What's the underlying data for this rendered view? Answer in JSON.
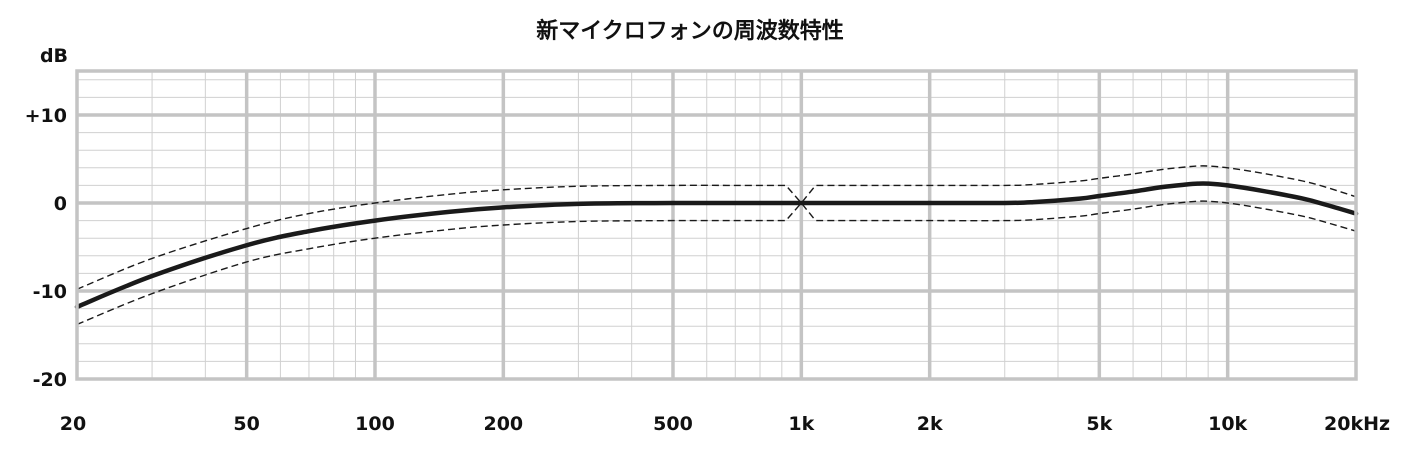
{
  "chart_data": {
    "type": "line",
    "title": "新マイクロフォンの周波数特性",
    "ylabel": "dB",
    "xscale": "log",
    "xlim": [
      20,
      20000
    ],
    "ylim": [
      -20,
      15
    ],
    "x_ticks": [
      {
        "value": 20,
        "label": "20"
      },
      {
        "value": 50,
        "label": "50"
      },
      {
        "value": 100,
        "label": "100"
      },
      {
        "value": 200,
        "label": "200"
      },
      {
        "value": 500,
        "label": "500"
      },
      {
        "value": 1000,
        "label": "1k"
      },
      {
        "value": 2000,
        "label": "2k"
      },
      {
        "value": 5000,
        "label": "5k"
      },
      {
        "value": 10000,
        "label": "10k"
      },
      {
        "value": 20000,
        "label": "20kHz"
      }
    ],
    "y_ticks": [
      {
        "value": 10,
        "label": "+10"
      },
      {
        "value": 0,
        "label": "0"
      },
      {
        "value": -10,
        "label": "-10"
      },
      {
        "value": -20,
        "label": "-20"
      }
    ],
    "grid": true,
    "legend": "none",
    "series": [
      {
        "style": "solid",
        "color": "#1a1a1a",
        "x": [
          20,
          30,
          50,
          70,
          100,
          150,
          200,
          300,
          500,
          700,
          1000,
          1500,
          2000,
          3000,
          3500,
          4500,
          5000,
          6000,
          7000,
          8000,
          8500,
          9000,
          10000,
          12000,
          15000,
          17000,
          20000
        ],
        "y": [
          -11.8,
          -8.3,
          -4.8,
          -3.2,
          -2.0,
          -1.0,
          -0.5,
          -0.1,
          0,
          0,
          0,
          0,
          0,
          0,
          0.1,
          0.5,
          0.8,
          1.3,
          1.8,
          2.1,
          2.2,
          2.2,
          2.0,
          1.4,
          0.5,
          -0.2,
          -1.2
        ]
      },
      {
        "style": "dashed",
        "color": "#1a1a1a",
        "x": [
          20,
          30,
          50,
          70,
          100,
          150,
          200,
          300,
          500,
          700,
          920,
          1000,
          1080,
          1500,
          2000,
          3000,
          3500,
          4500,
          5000,
          6000,
          7000,
          8000,
          8500,
          9000,
          10000,
          12000,
          15000,
          17000,
          20000
        ],
        "y": [
          -9.8,
          -6.3,
          -2.9,
          -1.2,
          0,
          1.0,
          1.5,
          1.9,
          2.0,
          2.0,
          2.0,
          0,
          2.0,
          2.0,
          2.0,
          2.0,
          2.1,
          2.5,
          2.8,
          3.3,
          3.8,
          4.1,
          4.2,
          4.2,
          4.0,
          3.4,
          2.5,
          1.8,
          0.7
        ]
      },
      {
        "style": "dashed",
        "color": "#1a1a1a",
        "x": [
          20,
          30,
          50,
          70,
          100,
          150,
          200,
          300,
          500,
          700,
          920,
          1000,
          1080,
          1500,
          2000,
          3000,
          3500,
          4500,
          5000,
          6000,
          7000,
          8000,
          8500,
          9000,
          10000,
          12000,
          15000,
          17000,
          20000
        ],
        "y": [
          -13.8,
          -10.3,
          -6.7,
          -5.2,
          -4.0,
          -3.0,
          -2.5,
          -2.1,
          -2.0,
          -2.0,
          -2.0,
          0,
          -2.0,
          -2.0,
          -2.0,
          -2.0,
          -1.9,
          -1.5,
          -1.2,
          -0.7,
          -0.2,
          0.1,
          0.2,
          0.2,
          0.0,
          -0.6,
          -1.5,
          -2.2,
          -3.2
        ]
      }
    ]
  }
}
